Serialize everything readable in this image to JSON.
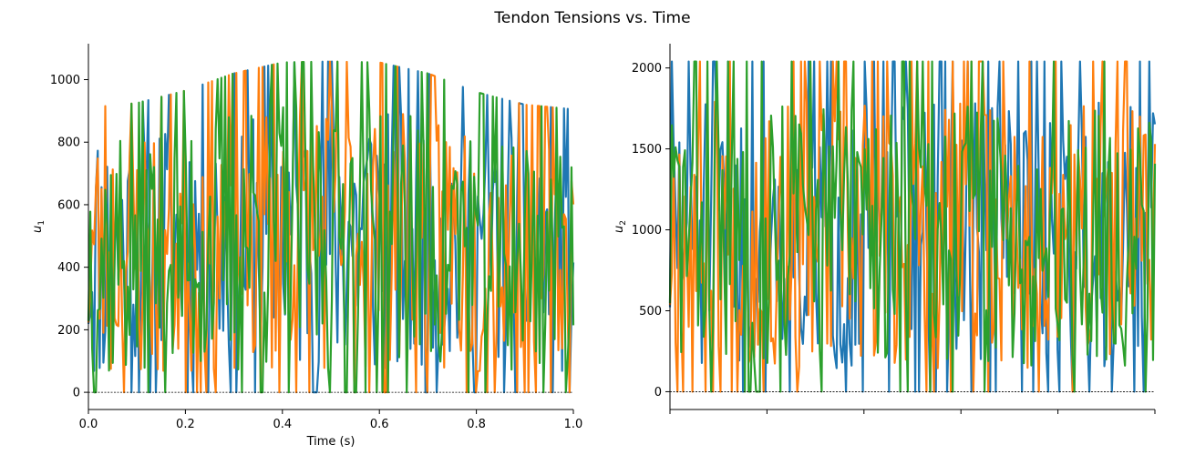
{
  "figure": {
    "title": "Tendon Tensions vs. Time"
  },
  "chart_data": [
    {
      "type": "line",
      "title": "",
      "xlabel": "Time (s)",
      "ylabel": "u",
      "ylabel_subscript": "1",
      "xlim": [
        0.0,
        1.0
      ],
      "ylim": [
        -55,
        1115
      ],
      "xticks": [
        "0.0",
        "0.2",
        "0.4",
        "0.6",
        "0.8",
        "1.0"
      ],
      "yticks": [
        "0",
        "200",
        "400",
        "600",
        "800",
        "1000"
      ],
      "reference_line": {
        "y": 0,
        "style": "dotted"
      },
      "envelope": {
        "t": [
          0.0,
          0.1,
          0.2,
          0.3,
          0.4,
          0.5,
          0.6,
          0.7,
          0.8,
          0.9,
          1.0
        ],
        "max": [
          910,
          925,
          965,
          1020,
          1055,
          1058,
          1055,
          1020,
          960,
          920,
          905
        ],
        "min": [
          0,
          0,
          0,
          0,
          0,
          0,
          0,
          0,
          0,
          0,
          0
        ]
      },
      "series": [
        {
          "color": "#1f77b4",
          "samples": 260,
          "seed": 11
        },
        {
          "color": "#ff7f0e",
          "samples": 260,
          "seed": 23
        },
        {
          "color": "#2ca02c",
          "samples": 260,
          "seed": 37
        }
      ]
    },
    {
      "type": "line",
      "title": "",
      "xlabel": "",
      "ylabel": "u",
      "ylabel_subscript": "2",
      "xlim": [
        0.0,
        1.0
      ],
      "ylim": [
        -110,
        2150
      ],
      "xticks": [
        "",
        "",
        "",
        "",
        "",
        ""
      ],
      "yticks": [
        "0",
        "500",
        "1000",
        "1500",
        "2000"
      ],
      "reference_line": {
        "y": 0,
        "style": "dotted"
      },
      "envelope": {
        "t": [
          0.0,
          0.1,
          0.2,
          0.3,
          0.4,
          0.5,
          0.6,
          0.7,
          0.8,
          0.9,
          1.0
        ],
        "max": [
          2040,
          2040,
          2040,
          2040,
          2040,
          2040,
          2040,
          2040,
          2040,
          2040,
          2040
        ],
        "min": [
          0,
          0,
          0,
          0,
          0,
          0,
          0,
          0,
          0,
          0,
          0
        ]
      },
      "series": [
        {
          "color": "#1f77b4",
          "samples": 260,
          "seed": 51
        },
        {
          "color": "#ff7f0e",
          "samples": 260,
          "seed": 67
        },
        {
          "color": "#2ca02c",
          "samples": 260,
          "seed": 83
        }
      ]
    }
  ]
}
